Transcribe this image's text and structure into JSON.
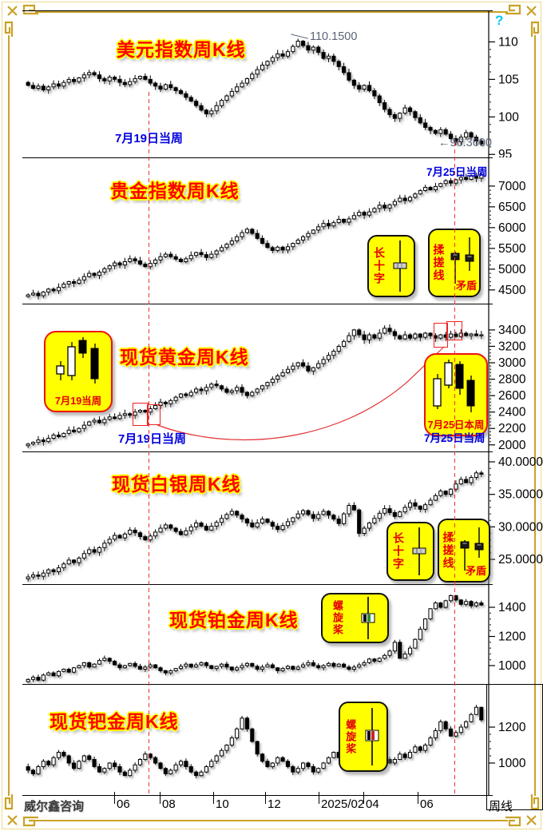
{
  "window": {
    "help_icon": "?",
    "arrow_left_icon": "←"
  },
  "footer": {
    "brand": "威尔鑫咨询",
    "period": "周线"
  },
  "x_axis": {
    "labels": [
      "06",
      "08",
      "10",
      "12",
      "2025/02",
      "04",
      "06"
    ]
  },
  "panels": [
    {
      "title": "美元指数周K线",
      "date_left": "7月19日当周",
      "peak_label": "110.1500",
      "last_label": "96.3600"
    },
    {
      "title": "贵金指数周K线",
      "date_right": "7月25日当周",
      "callout": {
        "long_cross": "长十字",
        "kneading": "揉搓线",
        "contradiction": "矛盾"
      }
    },
    {
      "title": "现货黄金周K线",
      "date_left": "7月19日当周",
      "date_right": "7月25日当周",
      "callout_left": "7月19当周",
      "callout_right": "7月25日本周"
    },
    {
      "title": "现货白银周K线",
      "callout": {
        "long_cross": "长十字",
        "kneading": "揉搓线",
        "contradiction": "矛盾"
      }
    },
    {
      "title": "现货铂金周K线",
      "callout": {
        "propeller": "螺旋桨"
      }
    },
    {
      "title": "现货钯金周K线",
      "callout": {
        "propeller": "螺旋桨"
      }
    }
  ],
  "colors": {
    "title_red": "#ff0000",
    "title_outline": "#ffff00",
    "date_blue": "#0000dd",
    "dashed_marker": "#f03030",
    "callout_yellow": "#ffff00",
    "frame_gold": "#c9a227",
    "help_cyan": "#00c8ee",
    "candle_up": "#ffffff",
    "candle_down": "#000000"
  },
  "chart_data": [
    {
      "type": "candlestick",
      "id": "usd-index-weekly",
      "title": "美元指数周K线",
      "ylim": [
        94.6,
        114.2
      ],
      "ticks": [
        {
          "v": 110,
          "label": "110"
        },
        {
          "v": 105,
          "label": "105"
        },
        {
          "v": 100,
          "label": "100"
        },
        {
          "v": 95,
          "label": "95"
        }
      ],
      "closes": [
        104.2,
        103.8,
        104.1,
        103.6,
        104.0,
        104.4,
        104.1,
        104.6,
        105.0,
        104.7,
        105.2,
        105.6,
        105.9,
        105.6,
        105.1,
        104.8,
        105.3,
        105.0,
        104.6,
        104.3,
        104.7,
        105.1,
        105.4,
        105.0,
        104.5,
        104.1,
        103.7,
        104.3,
        103.9,
        103.5,
        103.1,
        102.6,
        102.1,
        101.5,
        100.9,
        100.4,
        100.8,
        101.5,
        102.2,
        102.8,
        103.4,
        104.0,
        104.5,
        105.1,
        105.7,
        106.3,
        106.9,
        107.4,
        107.9,
        108.4,
        108.1,
        108.7,
        109.4,
        110.1,
        109.5,
        108.9,
        109.3,
        108.6,
        107.8,
        108.1,
        107.4,
        106.7,
        105.9,
        104.9,
        104.2,
        103.7,
        104.2,
        103.5,
        102.8,
        101.9,
        101.0,
        100.3,
        99.8,
        100.5,
        101.2,
        100.7,
        99.9,
        99.2,
        98.6,
        98.2,
        97.8,
        98.3,
        97.7,
        97.1,
        96.7,
        97.3,
        97.9,
        97.3,
        96.8,
        96.4
      ]
    },
    {
      "type": "candlestick",
      "id": "precious-metal-index-weekly",
      "title": "贵金指数周K线",
      "ylim": [
        4170,
        7690
      ],
      "ticks": [
        {
          "v": 7000,
          "label": "7000"
        },
        {
          "v": 6500,
          "label": "6500"
        },
        {
          "v": 6000,
          "label": "6000"
        },
        {
          "v": 5500,
          "label": "5500"
        },
        {
          "v": 5000,
          "label": "5000"
        },
        {
          "v": 4500,
          "label": "4500"
        }
      ],
      "closes": [
        4380,
        4420,
        4360,
        4450,
        4520,
        4480,
        4560,
        4640,
        4700,
        4660,
        4740,
        4820,
        4900,
        4850,
        4930,
        5010,
        5080,
        5150,
        5100,
        5180,
        5250,
        5200,
        5120,
        5060,
        5140,
        5220,
        5300,
        5360,
        5300,
        5240,
        5180,
        5250,
        5330,
        5400,
        5350,
        5280,
        5360,
        5440,
        5520,
        5600,
        5680,
        5780,
        5880,
        5960,
        5860,
        5740,
        5620,
        5520,
        5450,
        5530,
        5460,
        5540,
        5620,
        5700,
        5780,
        5860,
        5940,
        6020,
        6100,
        6040,
        6120,
        6200,
        6130,
        6210,
        6290,
        6370,
        6300,
        6380,
        6460,
        6540,
        6470,
        6550,
        6630,
        6710,
        6650,
        6730,
        6810,
        6890,
        6970,
        6910,
        6990,
        7060,
        7130,
        7070,
        7150,
        7210,
        7160,
        7240,
        7190,
        7280
      ]
    },
    {
      "type": "candlestick",
      "id": "spot-gold-weekly",
      "title": "现货黄金周K线",
      "ylim": [
        1920,
        3720
      ],
      "ticks": [
        {
          "v": 3400,
          "label": "3400"
        },
        {
          "v": 3200,
          "label": "3200"
        },
        {
          "v": 3000,
          "label": "3000"
        },
        {
          "v": 2800,
          "label": "2800"
        },
        {
          "v": 2600,
          "label": "2600"
        },
        {
          "v": 2400,
          "label": "2400"
        },
        {
          "v": 2200,
          "label": "2200"
        },
        {
          "v": 2000,
          "label": "2000"
        }
      ],
      "closes": [
        2010,
        2030,
        2060,
        2040,
        2080,
        2120,
        2100,
        2140,
        2180,
        2160,
        2200,
        2240,
        2280,
        2300,
        2270,
        2310,
        2340,
        2320,
        2360,
        2380,
        2360,
        2400,
        2420,
        2400,
        2440,
        2480,
        2520,
        2500,
        2540,
        2580,
        2620,
        2600,
        2640,
        2680,
        2660,
        2700,
        2740,
        2720,
        2680,
        2640,
        2660,
        2700,
        2640,
        2600,
        2640,
        2680,
        2720,
        2760,
        2800,
        2840,
        2880,
        2920,
        2960,
        3000,
        2960,
        2900,
        2940,
        2990,
        3040,
        3090,
        3140,
        3200,
        3260,
        3330,
        3400,
        3340,
        3280,
        3340,
        3300,
        3360,
        3420,
        3380,
        3330,
        3290,
        3340,
        3300,
        3350,
        3310,
        3360,
        3330,
        3300,
        3340,
        3310,
        3350,
        3320,
        3360,
        3330,
        3350,
        3330,
        3340
      ]
    },
    {
      "type": "candlestick",
      "id": "spot-silver-weekly",
      "title": "现货白银周K线",
      "ylim": [
        21.2,
        41.6
      ],
      "ticks": [
        {
          "v": 40,
          "label": "40.0000"
        },
        {
          "v": 35,
          "label": "35.0000"
        },
        {
          "v": 30,
          "label": "30.0000"
        },
        {
          "v": 25,
          "label": "25.0000"
        }
      ],
      "closes": [
        22.3,
        22.6,
        22.4,
        22.9,
        23.4,
        23.1,
        23.7,
        24.3,
        24.9,
        24.5,
        25.2,
        25.9,
        26.5,
        26.1,
        26.8,
        27.5,
        28.1,
        28.7,
        28.3,
        28.9,
        29.5,
        29.1,
        28.5,
        28.0,
        28.6,
        29.2,
        29.8,
        30.3,
        29.8,
        29.3,
        28.8,
        29.4,
        30.0,
        30.6,
        30.1,
        29.5,
        30.1,
        30.7,
        31.3,
        31.9,
        32.4,
        31.8,
        31.2,
        30.6,
        30.0,
        30.6,
        31.2,
        30.7,
        30.1,
        29.6,
        30.2,
        30.8,
        31.4,
        32.0,
        32.5,
        31.9,
        31.3,
        31.9,
        32.4,
        31.8,
        31.2,
        30.5,
        32.0,
        33.3,
        32.6,
        29.0,
        29.8,
        30.6,
        31.3,
        32.1,
        32.8,
        32.2,
        31.6,
        32.3,
        33.0,
        33.7,
        33.2,
        32.7,
        33.4,
        34.1,
        34.8,
        35.5,
        35.0,
        35.8,
        36.6,
        37.3,
        36.8,
        37.6,
        38.3,
        38.1
      ]
    },
    {
      "type": "candlestick",
      "id": "spot-platinum-weekly",
      "title": "现货铂金周K线",
      "ylim": [
        874,
        1559
      ],
      "ticks": [
        {
          "v": 1400,
          "label": "1400"
        },
        {
          "v": 1200,
          "label": "1200"
        },
        {
          "v": 1000,
          "label": "1000"
        }
      ],
      "closes": [
        905,
        920,
        900,
        935,
        950,
        930,
        960,
        975,
        955,
        985,
        1000,
        1020,
        990,
        1010,
        1035,
        1050,
        1030,
        1005,
        985,
        1000,
        1015,
        995,
        975,
        990,
        1005,
        985,
        965,
        950,
        965,
        980,
        995,
        1010,
        990,
        1005,
        1020,
        1000,
        980,
        995,
        1010,
        990,
        970,
        985,
        1000,
        1015,
        995,
        975,
        990,
        1005,
        985,
        965,
        980,
        995,
        975,
        990,
        1005,
        1020,
        1000,
        985,
        1000,
        1015,
        995,
        1010,
        990,
        975,
        990,
        1005,
        1020,
        1045,
        1030,
        1050,
        1070,
        1100,
        1160,
        1050,
        1080,
        1120,
        1180,
        1250,
        1320,
        1390,
        1430,
        1400,
        1445,
        1480,
        1450,
        1420,
        1440,
        1410,
        1430,
        1415
      ]
    },
    {
      "type": "candlestick",
      "id": "spot-palladium-weekly",
      "title": "现货钯金周K线",
      "ylim": [
        822,
        1440
      ],
      "ticks": [
        {
          "v": 1200,
          "label": "1200"
        },
        {
          "v": 1000,
          "label": "1000"
        }
      ],
      "closes": [
        960,
        940,
        980,
        1010,
        990,
        1030,
        1060,
        1040,
        1000,
        970,
        1010,
        1040,
        1020,
        980,
        950,
        970,
        1000,
        980,
        950,
        930,
        960,
        990,
        1020,
        1050,
        1030,
        1000,
        970,
        940,
        960,
        990,
        1010,
        980,
        950,
        930,
        950,
        980,
        1010,
        1040,
        1070,
        1100,
        1140,
        1190,
        1250,
        1190,
        1120,
        1050,
        1010,
        980,
        1000,
        1030,
        1010,
        980,
        950,
        970,
        1000,
        980,
        950,
        970,
        1000,
        1030,
        1060,
        1030,
        1000,
        980,
        1000,
        1030,
        1010,
        990,
        1010,
        1040,
        1020,
        1000,
        1020,
        1050,
        1030,
        1060,
        1090,
        1070,
        1100,
        1140,
        1180,
        1230,
        1190,
        1150,
        1170,
        1200,
        1230,
        1270,
        1310,
        1240
      ]
    }
  ]
}
